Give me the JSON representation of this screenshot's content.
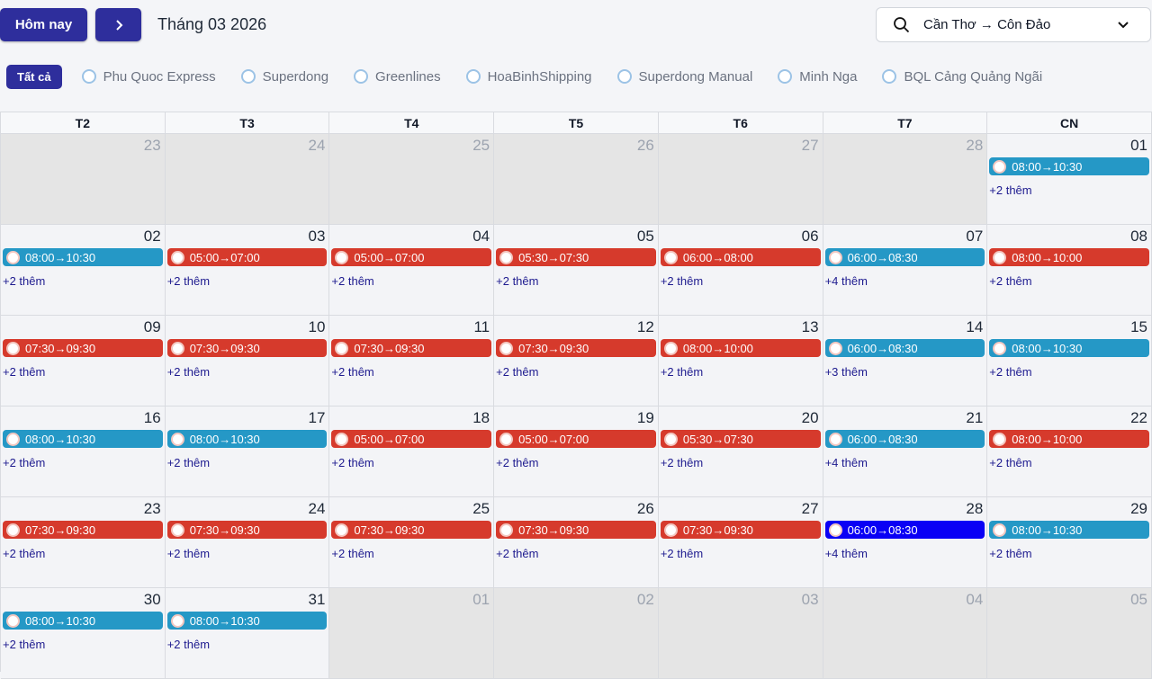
{
  "toolbar": {
    "today_button": "Hôm nay",
    "month_label": "Tháng 03 2026",
    "route_select": "Cần Thơ → Côn Đảo"
  },
  "operators": [
    "Tất cả",
    "Phu Quoc Express",
    "Superdong",
    "Greenlines",
    "HoaBinhShipping",
    "Superdong Manual",
    "Minh Nga",
    "BQL Cảng Quảng Ngãi"
  ],
  "weekdays": [
    "T2",
    "T3",
    "T4",
    "T5",
    "T6",
    "T7",
    "CN"
  ],
  "weeks": [
    [
      {
        "day": "23",
        "other_month": true
      },
      {
        "day": "24",
        "other_month": true
      },
      {
        "day": "25",
        "other_month": true
      },
      {
        "day": "26",
        "other_month": true
      },
      {
        "day": "27",
        "other_month": true
      },
      {
        "day": "28",
        "other_month": true
      },
      {
        "day": "01",
        "event": {
          "time": "08:00→10:30",
          "color": "#2598c6"
        },
        "more": "+2 thêm"
      }
    ],
    [
      {
        "day": "02",
        "event": {
          "time": "08:00→10:30",
          "color": "#2598c6"
        },
        "more": "+2 thêm"
      },
      {
        "day": "03",
        "event": {
          "time": "05:00→07:00",
          "color": "#d63a2c"
        },
        "more": "+2 thêm"
      },
      {
        "day": "04",
        "event": {
          "time": "05:00→07:00",
          "color": "#d63a2c"
        },
        "more": "+2 thêm"
      },
      {
        "day": "05",
        "event": {
          "time": "05:30→07:30",
          "color": "#d63a2c"
        },
        "more": "+2 thêm"
      },
      {
        "day": "06",
        "event": {
          "time": "06:00→08:00",
          "color": "#d63a2c"
        },
        "more": "+2 thêm"
      },
      {
        "day": "07",
        "event": {
          "time": "06:00→08:30",
          "color": "#2598c6"
        },
        "more": "+4 thêm"
      },
      {
        "day": "08",
        "event": {
          "time": "08:00→10:00",
          "color": "#d63a2c"
        },
        "more": "+2 thêm"
      }
    ],
    [
      {
        "day": "09",
        "event": {
          "time": "07:30→09:30",
          "color": "#d63a2c"
        },
        "more": "+2 thêm"
      },
      {
        "day": "10",
        "event": {
          "time": "07:30→09:30",
          "color": "#d63a2c"
        },
        "more": "+2 thêm"
      },
      {
        "day": "11",
        "event": {
          "time": "07:30→09:30",
          "color": "#d63a2c"
        },
        "more": "+2 thêm"
      },
      {
        "day": "12",
        "event": {
          "time": "07:30→09:30",
          "color": "#d63a2c"
        },
        "more": "+2 thêm"
      },
      {
        "day": "13",
        "event": {
          "time": "08:00→10:00",
          "color": "#d63a2c"
        },
        "more": "+2 thêm"
      },
      {
        "day": "14",
        "event": {
          "time": "06:00→08:30",
          "color": "#2598c6"
        },
        "more": "+3 thêm"
      },
      {
        "day": "15",
        "event": {
          "time": "08:00→10:30",
          "color": "#2598c6"
        },
        "more": "+2 thêm"
      }
    ],
    [
      {
        "day": "16",
        "event": {
          "time": "08:00→10:30",
          "color": "#2598c6"
        },
        "more": "+2 thêm"
      },
      {
        "day": "17",
        "event": {
          "time": "08:00→10:30",
          "color": "#2598c6"
        },
        "more": "+2 thêm"
      },
      {
        "day": "18",
        "event": {
          "time": "05:00→07:00",
          "color": "#d63a2c"
        },
        "more": "+2 thêm"
      },
      {
        "day": "19",
        "event": {
          "time": "05:00→07:00",
          "color": "#d63a2c"
        },
        "more": "+2 thêm"
      },
      {
        "day": "20",
        "event": {
          "time": "05:30→07:30",
          "color": "#d63a2c"
        },
        "more": "+2 thêm"
      },
      {
        "day": "21",
        "event": {
          "time": "06:00→08:30",
          "color": "#2598c6"
        },
        "more": "+4 thêm"
      },
      {
        "day": "22",
        "event": {
          "time": "08:00→10:00",
          "color": "#d63a2c"
        },
        "more": "+2 thêm"
      }
    ],
    [
      {
        "day": "23",
        "event": {
          "time": "07:30→09:30",
          "color": "#d63a2c"
        },
        "more": "+2 thêm"
      },
      {
        "day": "24",
        "event": {
          "time": "07:30→09:30",
          "color": "#d63a2c"
        },
        "more": "+2 thêm"
      },
      {
        "day": "25",
        "event": {
          "time": "07:30→09:30",
          "color": "#d63a2c"
        },
        "more": "+2 thêm"
      },
      {
        "day": "26",
        "event": {
          "time": "07:30→09:30",
          "color": "#d63a2c"
        },
        "more": "+2 thêm"
      },
      {
        "day": "27",
        "event": {
          "time": "07:30→09:30",
          "color": "#d63a2c"
        },
        "more": "+2 thêm"
      },
      {
        "day": "28",
        "event": {
          "time": "06:00→08:30",
          "color": "#0a00f5"
        },
        "more": "+4 thêm"
      },
      {
        "day": "29",
        "event": {
          "time": "08:00→10:30",
          "color": "#2598c6"
        },
        "more": "+2 thêm"
      }
    ],
    [
      {
        "day": "30",
        "event": {
          "time": "08:00→10:30",
          "color": "#2598c6"
        },
        "more": "+2 thêm"
      },
      {
        "day": "31",
        "event": {
          "time": "08:00→10:30",
          "color": "#2598c6"
        },
        "more": "+2 thêm"
      },
      {
        "day": "01",
        "other_month": true
      },
      {
        "day": "02",
        "other_month": true
      },
      {
        "day": "03",
        "other_month": true
      },
      {
        "day": "04",
        "other_month": true
      },
      {
        "day": "05",
        "other_month": true
      }
    ]
  ]
}
